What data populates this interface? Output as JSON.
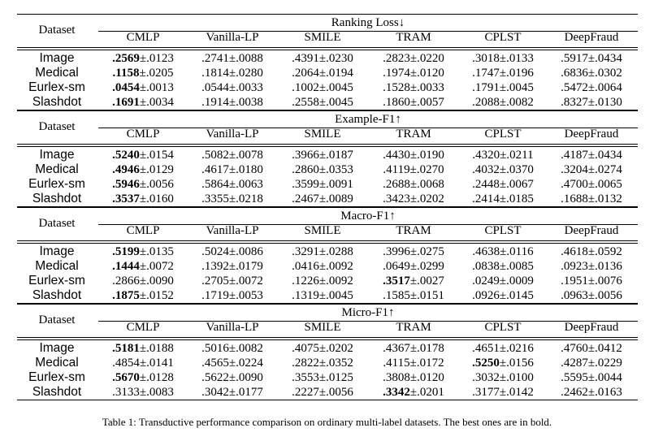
{
  "columns": [
    "CMLP",
    "Vanilla-LP",
    "SMILE",
    "TRAM",
    "CPLST",
    "DeepFraud"
  ],
  "dataset_header": "Dataset",
  "sections": [
    {
      "metric": "Ranking Loss↓",
      "rows": [
        {
          "dataset": "Image",
          "cells": [
            {
              "mean": ".2569",
              "std": "±.0123",
              "best": true
            },
            {
              "mean": ".2741",
              "std": "±.0088",
              "best": false
            },
            {
              "mean": ".4391",
              "std": "±.0230",
              "best": false
            },
            {
              "mean": ".2823",
              "std": "±.0220",
              "best": false
            },
            {
              "mean": ".3018",
              "std": "±.0133",
              "best": false
            },
            {
              "mean": ".5917",
              "std": "±.0434",
              "best": false
            }
          ]
        },
        {
          "dataset": "Medical",
          "cells": [
            {
              "mean": ".1158",
              "std": "±.0205",
              "best": true
            },
            {
              "mean": ".1814",
              "std": "±.0280",
              "best": false
            },
            {
              "mean": ".2064",
              "std": "±.0194",
              "best": false
            },
            {
              "mean": ".1974",
              "std": "±.0120",
              "best": false
            },
            {
              "mean": ".1747",
              "std": "±.0196",
              "best": false
            },
            {
              "mean": ".6836",
              "std": "±.0302",
              "best": false
            }
          ]
        },
        {
          "dataset": "Eurlex-sm",
          "cells": [
            {
              "mean": ".0454",
              "std": "±.0013",
              "best": true
            },
            {
              "mean": ".0544",
              "std": "±.0033",
              "best": false
            },
            {
              "mean": ".1002",
              "std": "±.0045",
              "best": false
            },
            {
              "mean": ".1528",
              "std": "±.0033",
              "best": false
            },
            {
              "mean": ".1791",
              "std": "±.0045",
              "best": false
            },
            {
              "mean": ".5472",
              "std": "±.0064",
              "best": false
            }
          ]
        },
        {
          "dataset": "Slashdot",
          "cells": [
            {
              "mean": ".1691",
              "std": "±.0034",
              "best": true
            },
            {
              "mean": ".1914",
              "std": "±.0038",
              "best": false
            },
            {
              "mean": ".2558",
              "std": "±.0045",
              "best": false
            },
            {
              "mean": ".1860",
              "std": "±.0057",
              "best": false
            },
            {
              "mean": ".2088",
              "std": "±.0082",
              "best": false
            },
            {
              "mean": ".8327",
              "std": "±.0130",
              "best": false
            }
          ]
        }
      ]
    },
    {
      "metric": "Example-F1↑",
      "rows": [
        {
          "dataset": "Image",
          "cells": [
            {
              "mean": ".5240",
              "std": "±.0154",
              "best": true
            },
            {
              "mean": ".5082",
              "std": "±.0078",
              "best": false
            },
            {
              "mean": ".3966",
              "std": "±.0187",
              "best": false
            },
            {
              "mean": ".4430",
              "std": "±.0190",
              "best": false
            },
            {
              "mean": ".4320",
              "std": "±.0211",
              "best": false
            },
            {
              "mean": ".4187",
              "std": "±.0434",
              "best": false
            }
          ]
        },
        {
          "dataset": "Medical",
          "cells": [
            {
              "mean": ".4946",
              "std": "±.0129",
              "best": true
            },
            {
              "mean": ".4617",
              "std": "±.0180",
              "best": false
            },
            {
              "mean": ".2860",
              "std": "±.0353",
              "best": false
            },
            {
              "mean": ".4119",
              "std": "±.0270",
              "best": false
            },
            {
              "mean": ".4032",
              "std": "±.0370",
              "best": false
            },
            {
              "mean": ".3204",
              "std": "±.0274",
              "best": false
            }
          ]
        },
        {
          "dataset": "Eurlex-sm",
          "cells": [
            {
              "mean": ".5946",
              "std": "±.0056",
              "best": true
            },
            {
              "mean": ".5864",
              "std": "±.0063",
              "best": false
            },
            {
              "mean": ".3599",
              "std": "±.0091",
              "best": false
            },
            {
              "mean": ".2688",
              "std": "±.0068",
              "best": false
            },
            {
              "mean": ".2448",
              "std": "±.0067",
              "best": false
            },
            {
              "mean": ".4700",
              "std": "±.0065",
              "best": false
            }
          ]
        },
        {
          "dataset": "Slashdot",
          "cells": [
            {
              "mean": ".3537",
              "std": "±.0160",
              "best": true
            },
            {
              "mean": ".3355",
              "std": "±.0218",
              "best": false
            },
            {
              "mean": ".2467",
              "std": "±.0089",
              "best": false
            },
            {
              "mean": ".3423",
              "std": "±.0202",
              "best": false
            },
            {
              "mean": ".2414",
              "std": "±.0185",
              "best": false
            },
            {
              "mean": ".1688",
              "std": "±.0132",
              "best": false
            }
          ]
        }
      ]
    },
    {
      "metric": "Macro-F1↑",
      "rows": [
        {
          "dataset": "Image",
          "cells": [
            {
              "mean": ".5199",
              "std": "±.0135",
              "best": true
            },
            {
              "mean": ".5024",
              "std": "±.0086",
              "best": false
            },
            {
              "mean": ".3291",
              "std": "±.0288",
              "best": false
            },
            {
              "mean": ".3996",
              "std": "±.0275",
              "best": false
            },
            {
              "mean": ".4638",
              "std": "±.0116",
              "best": false
            },
            {
              "mean": ".4618",
              "std": "±.0592",
              "best": false
            }
          ]
        },
        {
          "dataset": "Medical",
          "cells": [
            {
              "mean": ".1444",
              "std": "±.0072",
              "best": true
            },
            {
              "mean": ".1392",
              "std": "±.0179",
              "best": false
            },
            {
              "mean": ".0416",
              "std": "±.0092",
              "best": false
            },
            {
              "mean": ".0649",
              "std": "±.0299",
              "best": false
            },
            {
              "mean": ".0838",
              "std": "±.0085",
              "best": false
            },
            {
              "mean": ".0923",
              "std": "±.0136",
              "best": false
            }
          ]
        },
        {
          "dataset": "Eurlex-sm",
          "cells": [
            {
              "mean": ".2866",
              "std": "±.0090",
              "best": false
            },
            {
              "mean": ".2705",
              "std": "±.0072",
              "best": false
            },
            {
              "mean": ".1226",
              "std": "±.0092",
              "best": false
            },
            {
              "mean": ".3517",
              "std": "±.0027",
              "best": true
            },
            {
              "mean": ".0249",
              "std": "±.0009",
              "best": false
            },
            {
              "mean": ".1951",
              "std": "±.0076",
              "best": false
            }
          ]
        },
        {
          "dataset": "Slashdot",
          "cells": [
            {
              "mean": ".1875",
              "std": "±.0152",
              "best": true
            },
            {
              "mean": ".1719",
              "std": "±.0053",
              "best": false
            },
            {
              "mean": ".1319",
              "std": "±.0045",
              "best": false
            },
            {
              "mean": ".1585",
              "std": "±.0151",
              "best": false
            },
            {
              "mean": ".0926",
              "std": "±.0145",
              "best": false
            },
            {
              "mean": ".0963",
              "std": "±.0056",
              "best": false
            }
          ]
        }
      ]
    },
    {
      "metric": "Micro-F1↑",
      "rows": [
        {
          "dataset": "Image",
          "cells": [
            {
              "mean": ".5181",
              "std": "±.0188",
              "best": true
            },
            {
              "mean": ".5016",
              "std": "±.0082",
              "best": false
            },
            {
              "mean": ".4075",
              "std": "±.0202",
              "best": false
            },
            {
              "mean": ".4367",
              "std": "±.0178",
              "best": false
            },
            {
              "mean": ".4651",
              "std": "±.0216",
              "best": false
            },
            {
              "mean": ".4760",
              "std": "±.0412",
              "best": false
            }
          ]
        },
        {
          "dataset": "Medical",
          "cells": [
            {
              "mean": ".4854",
              "std": "±.0141",
              "best": false
            },
            {
              "mean": ".4565",
              "std": "±.0224",
              "best": false
            },
            {
              "mean": ".2822",
              "std": "±.0352",
              "best": false
            },
            {
              "mean": ".4115",
              "std": "±.0172",
              "best": false
            },
            {
              "mean": ".5250",
              "std": "±.0156",
              "best": true
            },
            {
              "mean": ".4287",
              "std": "±.0229",
              "best": false
            }
          ]
        },
        {
          "dataset": "Eurlex-sm",
          "cells": [
            {
              "mean": ".5670",
              "std": "±.0128",
              "best": true
            },
            {
              "mean": ".5622",
              "std": "±.0090",
              "best": false
            },
            {
              "mean": ".3553",
              "std": "±.0125",
              "best": false
            },
            {
              "mean": ".3808",
              "std": "±.0120",
              "best": false
            },
            {
              "mean": ".3032",
              "std": "±.0100",
              "best": false
            },
            {
              "mean": ".5595",
              "std": "±.0044",
              "best": false
            }
          ]
        },
        {
          "dataset": "Slashdot",
          "cells": [
            {
              "mean": ".3133",
              "std": "±.0083",
              "best": false
            },
            {
              "mean": ".3042",
              "std": "±.0177",
              "best": false
            },
            {
              "mean": ".2227",
              "std": "±.0056",
              "best": false
            },
            {
              "mean": ".3342",
              "std": "±.0201",
              "best": true
            },
            {
              "mean": ".3177",
              "std": "±.0142",
              "best": false
            },
            {
              "mean": ".2462",
              "std": "±.0163",
              "best": false
            }
          ]
        }
      ]
    }
  ],
  "caption": "Table 1: Transductive performance comparison on ordinary multi-label datasets. The best ones are in bold."
}
